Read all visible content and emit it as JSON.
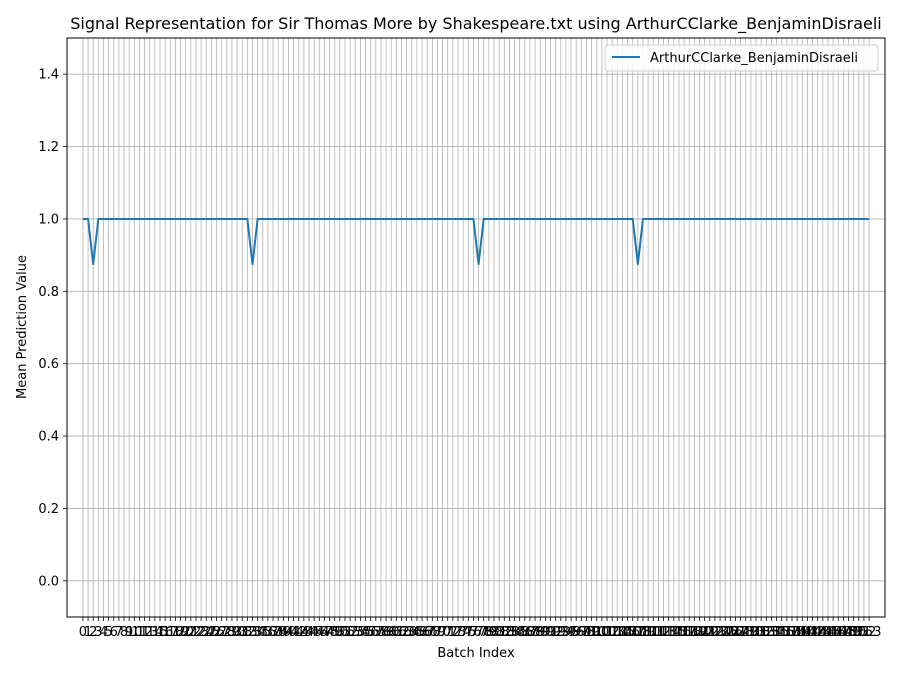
{
  "chart_data": {
    "type": "line",
    "title": "Signal Representation for Sir Thomas More by Shakespeare.txt using ArthurCClarke_BenjaminDisraeli",
    "xlabel": "Batch Index",
    "ylabel": "Mean Prediction Value",
    "xlim": [
      -3.1,
      156.1
    ],
    "ylim": [
      -0.1,
      1.5
    ],
    "yticks": [
      0.0,
      0.2,
      0.4,
      0.6,
      0.8,
      1.0,
      1.2,
      1.4
    ],
    "ytick_labels": [
      "0.0",
      "0.2",
      "0.4",
      "0.6",
      "0.8",
      "1.0",
      "1.2",
      "1.4"
    ],
    "grid": true,
    "legend_location": "upper right",
    "x_count": 154,
    "series": [
      {
        "name": "ArthurCClarke_BenjaminDisraeli",
        "color": "#1f77b4",
        "default": 1.0,
        "dips": [
          {
            "index": 2,
            "value": 0.875
          },
          {
            "index": 33,
            "value": 0.875
          },
          {
            "index": 77,
            "value": 0.875
          },
          {
            "index": 108,
            "value": 0.875
          }
        ]
      }
    ]
  }
}
